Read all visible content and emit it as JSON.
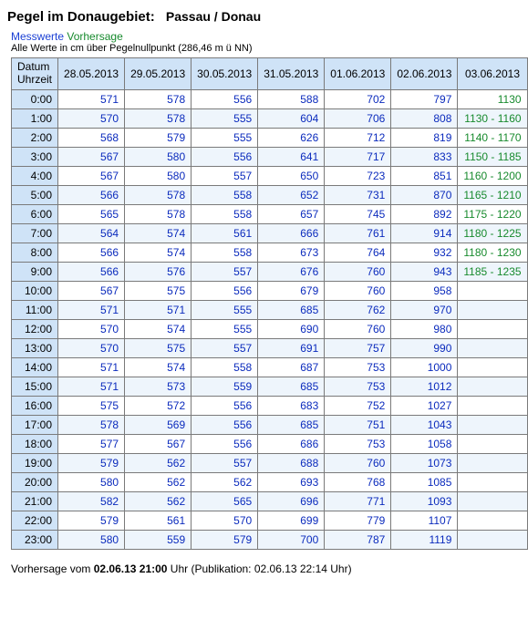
{
  "title_prefix": "Pegel im Donaugebiet:",
  "location": "Passau / Donau",
  "links": {
    "messwerte": "Messwerte",
    "vorhersage": "Vorhersage"
  },
  "subnote": "Alle Werte in cm über Pegelnullpunkt (286,46 m ü NN)",
  "corner_line1": "Datum",
  "corner_line2": "Uhrzeit",
  "columns": [
    "28.05.2013",
    "29.05.2013",
    "30.05.2013",
    "31.05.2013",
    "01.06.2013",
    "02.06.2013",
    "03.06.2013"
  ],
  "hours": [
    "0:00",
    "1:00",
    "2:00",
    "3:00",
    "4:00",
    "5:00",
    "6:00",
    "7:00",
    "8:00",
    "9:00",
    "10:00",
    "11:00",
    "12:00",
    "13:00",
    "14:00",
    "15:00",
    "16:00",
    "17:00",
    "18:00",
    "19:00",
    "20:00",
    "21:00",
    "22:00",
    "23:00"
  ],
  "values": [
    [
      "571",
      "578",
      "556",
      "588",
      "702",
      "797",
      "1130"
    ],
    [
      "570",
      "578",
      "555",
      "604",
      "706",
      "808",
      "1130 - 1160"
    ],
    [
      "568",
      "579",
      "555",
      "626",
      "712",
      "819",
      "1140 - 1170"
    ],
    [
      "567",
      "580",
      "556",
      "641",
      "717",
      "833",
      "1150 - 1185"
    ],
    [
      "567",
      "580",
      "557",
      "650",
      "723",
      "851",
      "1160 - 1200"
    ],
    [
      "566",
      "578",
      "558",
      "652",
      "731",
      "870",
      "1165 - 1210"
    ],
    [
      "565",
      "578",
      "558",
      "657",
      "745",
      "892",
      "1175 - 1220"
    ],
    [
      "564",
      "574",
      "561",
      "666",
      "761",
      "914",
      "1180 - 1225"
    ],
    [
      "566",
      "574",
      "558",
      "673",
      "764",
      "932",
      "1180 - 1230"
    ],
    [
      "566",
      "576",
      "557",
      "676",
      "760",
      "943",
      "1185 - 1235"
    ],
    [
      "567",
      "575",
      "556",
      "679",
      "760",
      "958",
      ""
    ],
    [
      "571",
      "571",
      "555",
      "685",
      "762",
      "970",
      ""
    ],
    [
      "570",
      "574",
      "555",
      "690",
      "760",
      "980",
      ""
    ],
    [
      "570",
      "575",
      "557",
      "691",
      "757",
      "990",
      ""
    ],
    [
      "571",
      "574",
      "558",
      "687",
      "753",
      "1000",
      ""
    ],
    [
      "571",
      "573",
      "559",
      "685",
      "753",
      "1012",
      ""
    ],
    [
      "575",
      "572",
      "556",
      "683",
      "752",
      "1027",
      ""
    ],
    [
      "578",
      "569",
      "556",
      "685",
      "751",
      "1043",
      ""
    ],
    [
      "577",
      "567",
      "556",
      "686",
      "753",
      "1058",
      ""
    ],
    [
      "579",
      "562",
      "557",
      "688",
      "760",
      "1073",
      ""
    ],
    [
      "580",
      "562",
      "562",
      "693",
      "768",
      "1085",
      ""
    ],
    [
      "582",
      "562",
      "565",
      "696",
      "771",
      "1093",
      ""
    ],
    [
      "579",
      "561",
      "570",
      "699",
      "779",
      "1107",
      ""
    ],
    [
      "580",
      "559",
      "579",
      "700",
      "787",
      "1119",
      ""
    ]
  ],
  "forecast_col_index": 6,
  "footer_prefix": "Vorhersage vom ",
  "footer_date": "02.06.13 21:00",
  "footer_suffix": " Uhr (Publikation: 02.06.13 22:14 Uhr)"
}
